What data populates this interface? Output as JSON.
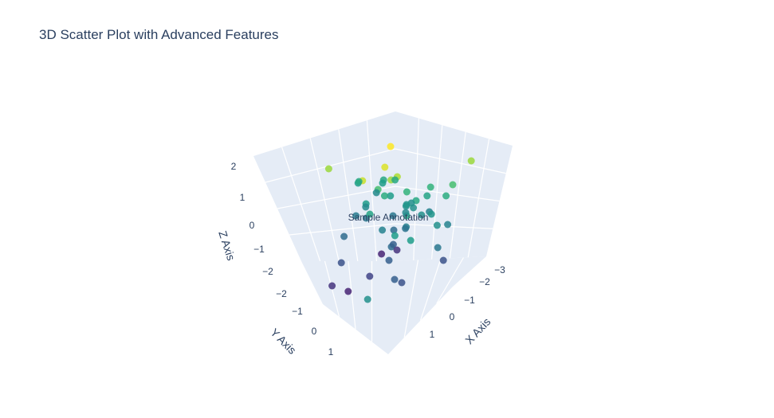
{
  "chart_data": {
    "type": "scatter",
    "title": "3D Scatter Plot with Advanced Features",
    "xlabel": "X Axis",
    "ylabel": "Y Axis",
    "zlabel": "Z Axis",
    "xticks": [
      "−3",
      "−2",
      "−1",
      "0",
      "1"
    ],
    "yticks": [
      "−2",
      "−1",
      "0",
      "1"
    ],
    "zticks": [
      "2",
      "1",
      "0",
      "−1",
      "−2"
    ],
    "annotation": "Sample Annotation",
    "colorscale": "viridis",
    "colors": {
      "pane": "#e5ecf6",
      "grid": "#ffffff",
      "text": "#2a3f5f"
    },
    "points": [
      {
        "x": 0.0,
        "y": 0.0,
        "z": 2.2,
        "c": 1.0
      },
      {
        "x": 0.2,
        "y": 0.4,
        "z": 1.7,
        "c": 0.95
      },
      {
        "x": -0.8,
        "y": 1.2,
        "z": 1.6,
        "c": 0.85
      },
      {
        "x": 0.4,
        "y": 0.2,
        "z": 1.4,
        "c": 0.88
      },
      {
        "x": 0.3,
        "y": 0.3,
        "z": 1.3,
        "c": 0.85
      },
      {
        "x": -0.5,
        "y": 0.4,
        "z": 1.1,
        "c": 0.92
      },
      {
        "x": -0.6,
        "y": -0.4,
        "z": 0.9,
        "c": 0.6
      },
      {
        "x": -0.3,
        "y": 0.1,
        "z": 0.8,
        "c": 0.7
      },
      {
        "x": -0.1,
        "y": -0.1,
        "z": 0.6,
        "c": 0.55
      },
      {
        "x": -1.4,
        "y": -0.4,
        "z": 0.6,
        "c": 0.55
      },
      {
        "x": 0.0,
        "y": 0.2,
        "z": 0.7,
        "c": 0.62
      },
      {
        "x": 0.2,
        "y": -0.3,
        "z": 0.3,
        "c": 0.5
      },
      {
        "x": 0.6,
        "y": 0.1,
        "z": 0.2,
        "c": 0.58
      },
      {
        "x": -1.0,
        "y": -1.2,
        "z": 0.6,
        "c": 0.6
      },
      {
        "x": -1.2,
        "y": -1.0,
        "z": 0.5,
        "c": 0.55
      },
      {
        "x": -1.3,
        "y": -0.9,
        "z": 0.2,
        "c": 0.48
      },
      {
        "x": 0.8,
        "y": 0.0,
        "z": 0.7,
        "c": 0.6
      },
      {
        "x": 1.0,
        "y": 0.3,
        "z": 0.6,
        "c": 0.5
      },
      {
        "x": -0.2,
        "y": 0.6,
        "z": 0.5,
        "c": 0.55
      },
      {
        "x": 0.4,
        "y": -0.6,
        "z": 0.0,
        "c": 0.5
      },
      {
        "x": -0.4,
        "y": -0.5,
        "z": -0.2,
        "c": 0.4
      },
      {
        "x": 0.1,
        "y": 0.0,
        "z": -0.4,
        "c": 0.35
      },
      {
        "x": 0.3,
        "y": -0.2,
        "z": -0.3,
        "c": 0.45
      },
      {
        "x": 0.7,
        "y": -0.8,
        "z": -0.3,
        "c": 0.5
      },
      {
        "x": -0.7,
        "y": 0.8,
        "z": -0.6,
        "c": 0.35
      },
      {
        "x": 1.1,
        "y": -0.4,
        "z": -0.8,
        "c": 0.4
      },
      {
        "x": 0.5,
        "y": 0.5,
        "z": -0.7,
        "c": 0.35
      },
      {
        "x": -0.2,
        "y": -0.3,
        "z": -1.0,
        "c": 0.3
      },
      {
        "x": 0.0,
        "y": 0.3,
        "z": -1.1,
        "c": 0.1
      },
      {
        "x": 0.2,
        "y": 0.0,
        "z": -1.0,
        "c": 0.15
      },
      {
        "x": -0.5,
        "y": 1.1,
        "z": -1.3,
        "c": 0.25
      },
      {
        "x": 0.9,
        "y": 1.0,
        "z": -0.9,
        "c": 0.3
      },
      {
        "x": 0.8,
        "y": -0.9,
        "z": -1.4,
        "c": 0.25
      },
      {
        "x": -0.6,
        "y": 1.3,
        "z": -2.0,
        "c": 0.15
      },
      {
        "x": 0.2,
        "y": 0.9,
        "z": -1.6,
        "c": 0.2
      },
      {
        "x": 0.0,
        "y": 1.4,
        "z": -2.0,
        "c": 0.1
      },
      {
        "x": 0.6,
        "y": 0.5,
        "z": -1.7,
        "c": 0.3
      },
      {
        "x": 1.3,
        "y": 1.0,
        "z": -1.5,
        "c": 0.25
      },
      {
        "x": -1.1,
        "y": -1.3,
        "z": -1.2,
        "c": 0.55
      },
      {
        "x": 0.8,
        "y": 1.6,
        "z": -2.0,
        "c": 0.5
      },
      {
        "x": 1.5,
        "y": 0.3,
        "z": 0.6,
        "c": 0.45
      },
      {
        "x": -0.3,
        "y": -1.0,
        "z": 0.1,
        "c": 0.5
      },
      {
        "x": 0.1,
        "y": -1.1,
        "z": 0.4,
        "c": 0.58
      },
      {
        "x": 0.4,
        "y": -0.9,
        "z": 0.8,
        "c": 0.65
      },
      {
        "x": -0.9,
        "y": 0.1,
        "z": 0.9,
        "c": 0.6
      },
      {
        "x": 1.6,
        "y": -0.2,
        "z": 0.1,
        "c": 0.45
      },
      {
        "x": -0.1,
        "y": 0.7,
        "z": 0.1,
        "c": 0.4
      },
      {
        "x": 0.5,
        "y": 0.8,
        "z": -0.1,
        "c": 0.45
      },
      {
        "x": 1.2,
        "y": 0.6,
        "z": -0.3,
        "c": 0.55
      },
      {
        "x": 0.9,
        "y": -0.4,
        "z": 0.2,
        "c": 0.52
      },
      {
        "x": -0.4,
        "y": 0.4,
        "z": 0.3,
        "c": 0.48
      },
      {
        "x": 0.6,
        "y": -1.2,
        "z": 0.5,
        "c": 0.62
      },
      {
        "x": -0.8,
        "y": 0.3,
        "z": -0.1,
        "c": 0.42
      },
      {
        "x": 0.3,
        "y": 1.0,
        "z": 0.4,
        "c": 0.58
      },
      {
        "x": 1.0,
        "y": -1.0,
        "z": 1.0,
        "c": 0.7
      },
      {
        "x": 1.2,
        "y": -1.4,
        "z": 1.7,
        "c": 0.85
      },
      {
        "x": 0.7,
        "y": 0.2,
        "z": 1.0,
        "c": 0.65
      },
      {
        "x": -0.2,
        "y": -0.7,
        "z": -0.6,
        "c": 0.38
      },
      {
        "x": 0.0,
        "y": -0.5,
        "z": 0.0,
        "c": 0.47
      },
      {
        "x": 0.5,
        "y": 0.0,
        "z": 0.5,
        "c": 0.52
      }
    ]
  }
}
